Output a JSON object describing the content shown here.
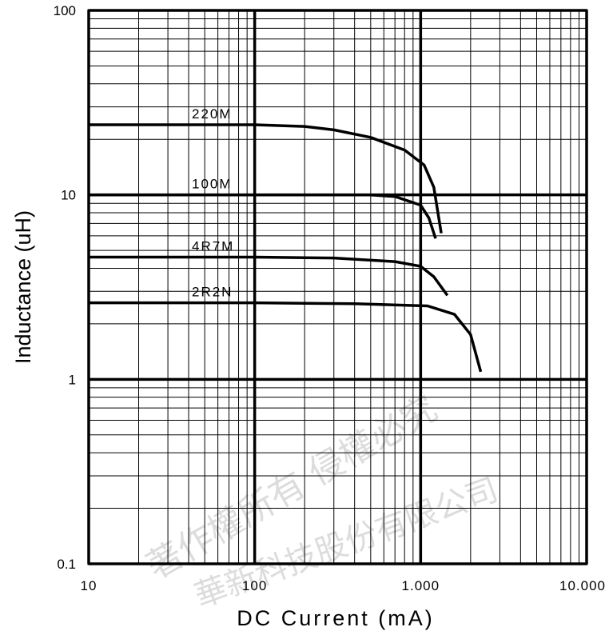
{
  "chart_data": {
    "type": "line",
    "xlabel": "DC  Current (mA)",
    "ylabel": "Inductance (uH)",
    "x_scale": "log",
    "y_scale": "log",
    "xlim": [
      10,
      10000
    ],
    "ylim": [
      0.1,
      100
    ],
    "grid": true,
    "x_ticks": [
      {
        "value": 10,
        "label": "10"
      },
      {
        "value": 100,
        "label": "100"
      },
      {
        "value": 1000,
        "label": "1.000"
      },
      {
        "value": 10000,
        "label": "10.000"
      }
    ],
    "y_ticks": [
      {
        "value": 0.1,
        "label": "0.1"
      },
      {
        "value": 1,
        "label": "1"
      },
      {
        "value": 10,
        "label": "10"
      },
      {
        "value": 100,
        "label": "100"
      }
    ],
    "series": [
      {
        "name": "220M",
        "x": [
          10,
          100,
          200,
          300,
          500,
          800,
          1050,
          1200,
          1330
        ],
        "y": [
          24,
          24,
          23.5,
          22.5,
          20.5,
          17.5,
          14.5,
          11,
          6.2
        ]
      },
      {
        "name": "100M",
        "x": [
          10,
          100,
          500,
          700,
          1000,
          1120,
          1230
        ],
        "y": [
          10,
          10,
          10,
          9.8,
          8.8,
          7.5,
          5.8
        ]
      },
      {
        "name": "4R7M",
        "x": [
          10,
          100,
          300,
          700,
          1000,
          1200,
          1450
        ],
        "y": [
          4.6,
          4.6,
          4.55,
          4.35,
          4.1,
          3.6,
          2.85
        ]
      },
      {
        "name": "2R2N",
        "x": [
          10,
          100,
          400,
          1100,
          1600,
          2000,
          2300
        ],
        "y": [
          2.6,
          2.6,
          2.57,
          2.5,
          2.25,
          1.75,
          1.1
        ]
      }
    ]
  },
  "watermark": {
    "line1": "著作權所有 侵權必究",
    "line2": "華新科技股份有限公司"
  }
}
